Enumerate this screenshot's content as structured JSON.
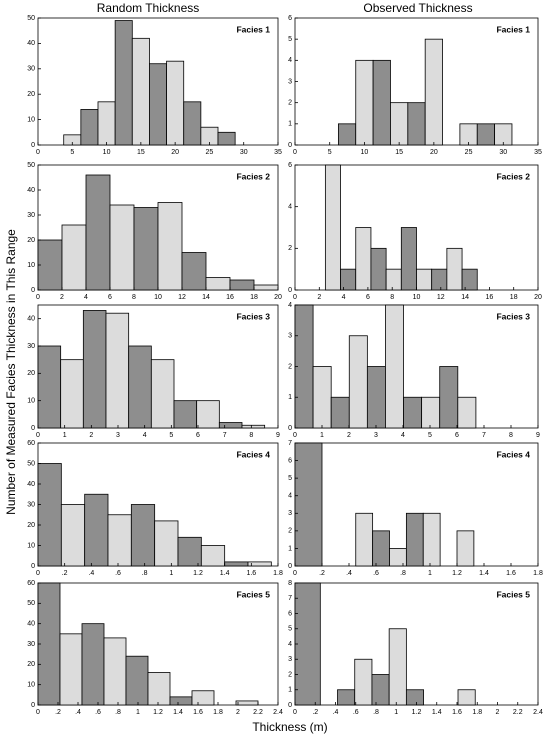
{
  "column_titles": [
    "Random Thickness",
    "Observed Thickness"
  ],
  "y_label": "Number of Measured Facies Thickness in This Range",
  "x_label": "Thickness (m)",
  "chart_data": [
    {
      "type": "histogram",
      "title": "Facies 1",
      "bins": [
        3.75,
        6.25,
        8.75,
        11.25,
        13.75,
        16.25,
        18.75,
        21.25,
        23.75,
        26.25,
        28.75
      ],
      "values": [
        4,
        14,
        17,
        49,
        42,
        32,
        33,
        17,
        7,
        5
      ],
      "colors": [
        "#dcdcdc",
        "#8e8e8e"
      ],
      "xlim": [
        0,
        35
      ],
      "xticks": [
        0,
        5,
        10,
        15,
        20,
        25,
        30,
        35
      ],
      "ylim": [
        0,
        50
      ],
      "yticks": [
        0,
        10,
        20,
        30,
        40,
        50
      ]
    },
    {
      "type": "histogram",
      "title": "Facies 1",
      "bins": [
        6.25,
        8.75,
        11.25,
        13.75,
        16.25,
        18.75,
        21.25,
        23.75,
        26.25,
        28.75,
        31.25
      ],
      "values": [
        1,
        4,
        4,
        2,
        2,
        5,
        0,
        1,
        1,
        1
      ],
      "colors": [
        "#8e8e8e",
        "#dcdcdc"
      ],
      "xlim": [
        0,
        35
      ],
      "xticks": [
        0,
        5,
        10,
        15,
        20,
        25,
        30,
        35
      ],
      "ylim": [
        0,
        6
      ],
      "yticks": [
        0,
        1,
        2,
        3,
        4,
        5,
        6
      ]
    },
    {
      "type": "histogram",
      "title": "Facies 2",
      "bins": [
        0,
        2,
        4,
        6,
        8,
        10,
        12,
        14,
        16,
        18,
        20
      ],
      "values": [
        20,
        26,
        46,
        34,
        33,
        35,
        15,
        5,
        4,
        2
      ],
      "colors": [
        "#8e8e8e",
        "#dcdcdc"
      ],
      "xlim": [
        0,
        20
      ],
      "xticks": [
        0,
        2,
        4,
        6,
        8,
        10,
        12,
        14,
        16,
        18,
        20
      ],
      "ylim": [
        0,
        50
      ],
      "yticks": [
        0,
        10,
        20,
        30,
        40,
        50
      ]
    },
    {
      "type": "histogram",
      "title": "Facies 2",
      "bins": [
        2.5,
        3.75,
        5,
        6.25,
        7.5,
        8.75,
        10,
        11.25,
        12.5,
        13.75,
        15
      ],
      "values": [
        6,
        1,
        3,
        2,
        1,
        3,
        1,
        1,
        2,
        1
      ],
      "colors": [
        "#dcdcdc",
        "#8e8e8e"
      ],
      "xlim": [
        0,
        20
      ],
      "xticks": [
        0,
        2,
        4,
        6,
        8,
        10,
        12,
        14,
        16,
        18,
        20
      ],
      "ylim": [
        0,
        6
      ],
      "yticks": [
        0,
        2,
        4,
        6
      ]
    },
    {
      "type": "histogram",
      "title": "Facies 3",
      "bins": [
        0,
        0.85,
        1.7,
        2.55,
        3.4,
        4.25,
        5.1,
        5.95,
        6.8,
        7.65,
        8.5
      ],
      "values": [
        30,
        25,
        43,
        42,
        30,
        25,
        10,
        10,
        2,
        1
      ],
      "colors": [
        "#8e8e8e",
        "#dcdcdc"
      ],
      "xlim": [
        0,
        9
      ],
      "xticks": [
        0,
        1,
        2,
        3,
        4,
        5,
        6,
        7,
        8,
        9
      ],
      "ylim": [
        0,
        45
      ],
      "yticks": [
        0,
        10,
        20,
        30,
        40
      ]
    },
    {
      "type": "histogram",
      "title": "Facies 3",
      "bins": [
        0,
        0.67,
        1.34,
        2.01,
        2.68,
        3.35,
        4.02,
        4.69,
        5.36,
        6.03,
        6.7
      ],
      "values": [
        4,
        2,
        1,
        3,
        2,
        4,
        1,
        1,
        2,
        1
      ],
      "colors": [
        "#8e8e8e",
        "#dcdcdc"
      ],
      "xlim": [
        0,
        9
      ],
      "xticks": [
        0,
        1,
        2,
        3,
        4,
        5,
        6,
        7,
        8,
        9
      ],
      "ylim": [
        0,
        4
      ],
      "yticks": [
        0,
        1,
        2,
        3,
        4
      ]
    },
    {
      "type": "histogram",
      "title": "Facies 4",
      "bins": [
        0,
        0.175,
        0.35,
        0.525,
        0.7,
        0.875,
        1.05,
        1.225,
        1.4,
        1.575,
        1.75
      ],
      "values": [
        50,
        30,
        35,
        25,
        30,
        22,
        14,
        10,
        2,
        2
      ],
      "colors": [
        "#8e8e8e",
        "#dcdcdc"
      ],
      "xlim": [
        0,
        1.8
      ],
      "xticks": [
        0,
        {
          "value": 0.2,
          "label": ".2"
        },
        {
          "value": 0.4,
          "label": ".4"
        },
        {
          "value": 0.6,
          "label": ".6"
        },
        {
          "value": 0.8,
          "label": ".8"
        },
        1,
        1.2,
        1.4,
        1.6,
        1.8
      ],
      "ylim": [
        0,
        60
      ],
      "yticks": [
        0,
        10,
        20,
        30,
        40,
        50,
        60
      ]
    },
    {
      "type": "histogram",
      "title": "Facies 4",
      "bins": [
        0,
        0.2,
        0.325,
        0.45,
        0.575,
        0.7,
        0.825,
        0.95,
        1.075,
        1.2,
        1.325
      ],
      "values": [
        7,
        0,
        0,
        3,
        2,
        1,
        3,
        3,
        0,
        2
      ],
      "colors": [
        "#8e8e8e",
        "#dcdcdc"
      ],
      "xlim": [
        0,
        1.8
      ],
      "xticks": [
        0,
        {
          "value": 0.2,
          "label": ".2"
        },
        {
          "value": 0.4,
          "label": ".4"
        },
        {
          "value": 0.6,
          "label": ".6"
        },
        {
          "value": 0.8,
          "label": ".8"
        },
        1,
        1.2,
        1.4,
        1.6,
        1.8
      ],
      "ylim": [
        0,
        7
      ],
      "yticks": [
        0,
        1,
        2,
        3,
        4,
        5,
        6,
        7
      ]
    },
    {
      "type": "histogram",
      "title": "Facies 5",
      "bins": [
        0,
        0.22,
        0.44,
        0.66,
        0.88,
        1.1,
        1.32,
        1.54,
        1.76,
        1.98,
        2.2
      ],
      "values": [
        60,
        35,
        40,
        33,
        24,
        16,
        4,
        7,
        0,
        2
      ],
      "colors": [
        "#8e8e8e",
        "#dcdcdc"
      ],
      "xlim": [
        0,
        2.4
      ],
      "xticks": [
        0,
        {
          "value": 0.2,
          "label": ".2"
        },
        {
          "value": 0.4,
          "label": ".4"
        },
        {
          "value": 0.6,
          "label": ".6"
        },
        {
          "value": 0.8,
          "label": ".8"
        },
        1,
        1.2,
        1.4,
        1.6,
        1.8,
        2,
        2.2,
        2.4
      ],
      "ylim": [
        0,
        60
      ],
      "yticks": [
        0,
        10,
        20,
        30,
        40,
        50,
        60
      ]
    },
    {
      "type": "histogram",
      "title": "Facies 5",
      "bins": [
        0,
        0.25,
        0.42,
        0.59,
        0.76,
        0.93,
        1.1,
        1.27,
        1.44,
        1.61,
        1.78
      ],
      "values": [
        8,
        0,
        1,
        3,
        2,
        5,
        1,
        0,
        0,
        1
      ],
      "colors": [
        "#8e8e8e",
        "#dcdcdc"
      ],
      "xlim": [
        0,
        2.4
      ],
      "xticks": [
        0,
        {
          "value": 0.2,
          "label": ".2"
        },
        {
          "value": 0.4,
          "label": ".4"
        },
        {
          "value": 0.6,
          "label": ".6"
        },
        {
          "value": 0.8,
          "label": ".8"
        },
        1,
        1.2,
        1.4,
        1.6,
        1.8,
        2,
        2.2,
        2.4
      ],
      "ylim": [
        0,
        8
      ],
      "yticks": [
        0,
        1,
        2,
        3,
        4,
        5,
        6,
        7,
        8
      ]
    }
  ]
}
